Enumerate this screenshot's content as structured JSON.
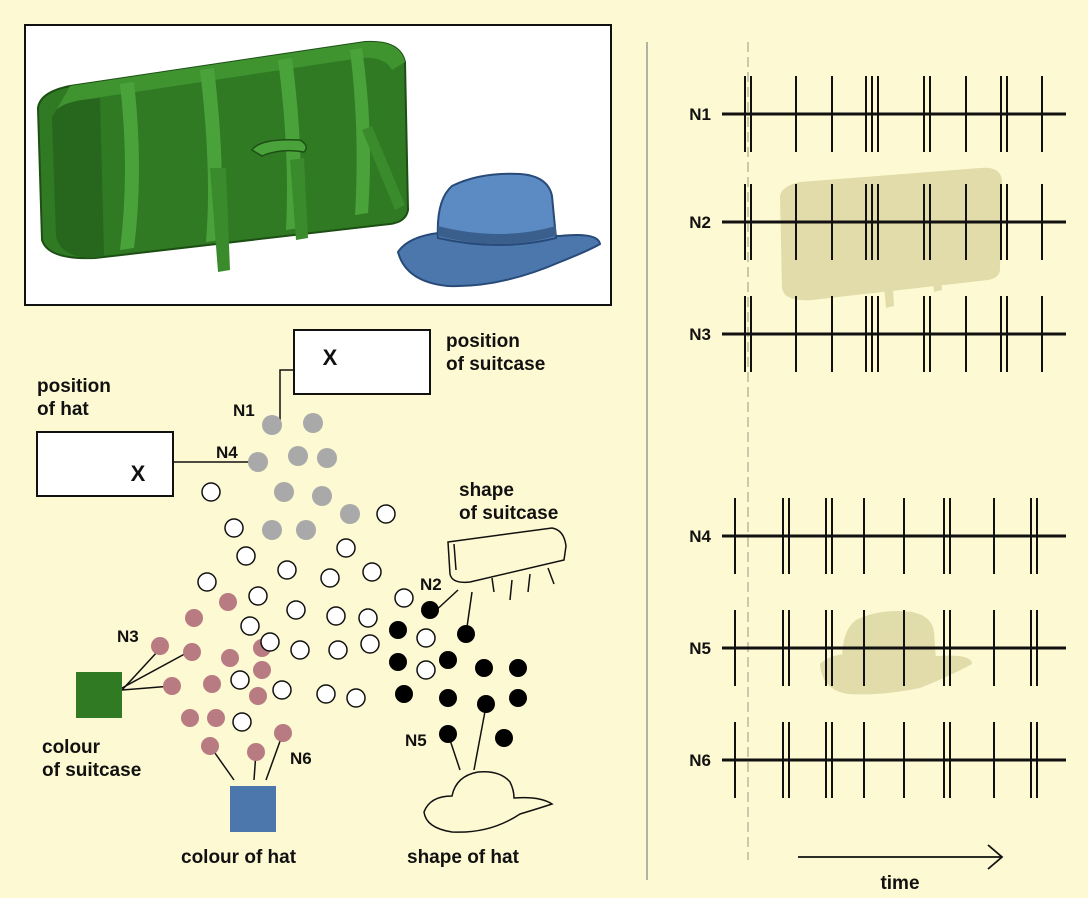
{
  "boxes": {
    "suitcase_position": {
      "label": "position\nof suitcase",
      "mark": "X"
    },
    "hat_position": {
      "label": "position\nof hat",
      "mark": "X"
    }
  },
  "labels": {
    "shape_suitcase": "shape\nof suitcase",
    "colour_suitcase": "colour\nof suitcase",
    "colour_hat": "colour of hat",
    "shape_hat": "shape of hat",
    "time": "time"
  },
  "colors": {
    "background": "#fdf9d2",
    "suitcase_green": "#2f7a23",
    "hat_blue": "#4b77ad",
    "gray_neuron": "#a9a9a9",
    "pink_neuron": "#b87b82",
    "black_neuron": "#000000"
  },
  "neuron_labels": {
    "N1": "N1",
    "N2": "N2",
    "N3": "N3",
    "N4": "N4",
    "N5": "N5",
    "N6": "N6"
  },
  "spike_trains": [
    {
      "name": "N1",
      "group": "suitcase"
    },
    {
      "name": "N2",
      "group": "suitcase"
    },
    {
      "name": "N3",
      "group": "suitcase"
    },
    {
      "name": "N4",
      "group": "hat"
    },
    {
      "name": "N5",
      "group": "hat"
    },
    {
      "name": "N6",
      "group": "hat"
    }
  ],
  "icons": {
    "photo_suitcase": "green-suitcase-photo",
    "photo_hat": "blue-hat-photo",
    "outline_suitcase": "suitcase-outline-icon",
    "outline_hat": "hat-outline-icon",
    "time_arrow": "arrow-right-icon"
  }
}
